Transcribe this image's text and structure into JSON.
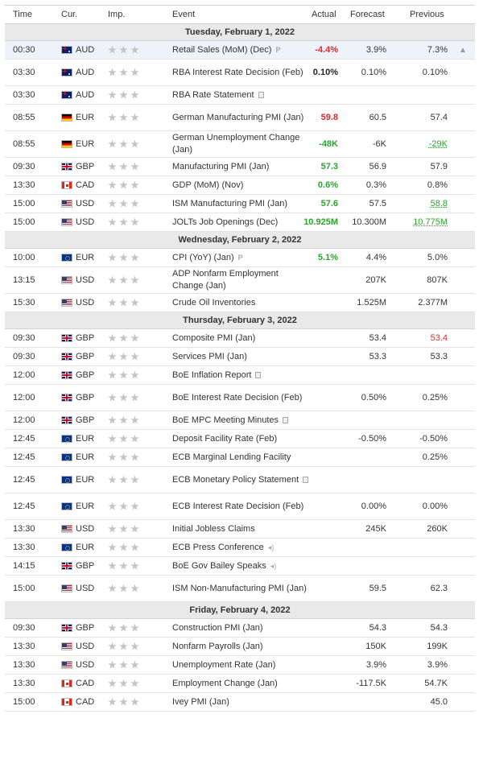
{
  "headers": {
    "time": "Time",
    "cur": "Cur.",
    "imp": "Imp.",
    "event": "Event",
    "actual": "Actual",
    "forecast": "Forecast",
    "previous": "Previous"
  },
  "sections": [
    {
      "date": "Tuesday, February 1, 2022",
      "rows": [
        {
          "time": "00:30",
          "flag": "AUD",
          "cur": "AUD",
          "event": "Retail Sales (MoM) (Dec)",
          "icon": "prelim",
          "actual": "-4.4%",
          "aclass": "neg",
          "forecast": "3.9%",
          "previous": "7.3%",
          "pclass": "",
          "h": 1,
          "hl": true,
          "alert": true
        },
        {
          "time": "03:30",
          "flag": "AUD",
          "cur": "AUD",
          "event": "RBA Interest Rate Decision (Feb)",
          "icon": "",
          "actual": "0.10%",
          "aclass": "neu",
          "forecast": "0.10%",
          "previous": "0.10%",
          "pclass": "",
          "h": 2
        },
        {
          "time": "03:30",
          "flag": "AUD",
          "cur": "AUD",
          "event": "RBA Rate Statement",
          "icon": "doc",
          "actual": "",
          "aclass": "",
          "forecast": "",
          "previous": "",
          "pclass": "",
          "h": 1
        },
        {
          "time": "08:55",
          "flag": "GER",
          "cur": "EUR",
          "event": "German Manufacturing PMI (Jan)",
          "icon": "",
          "actual": "59.8",
          "aclass": "neg",
          "forecast": "60.5",
          "previous": "57.4",
          "pclass": "",
          "h": 2
        },
        {
          "time": "08:55",
          "flag": "GER",
          "cur": "EUR",
          "event": "German Unemployment Change (Jan)",
          "icon": "",
          "actual": "-48K",
          "aclass": "pos",
          "forecast": "-6K",
          "previous": "-29K",
          "pclass": "prev-pos",
          "h": 2
        },
        {
          "time": "09:30",
          "flag": "GBP",
          "cur": "GBP",
          "event": "Manufacturing PMI (Jan)",
          "icon": "",
          "actual": "57.3",
          "aclass": "pos",
          "forecast": "56.9",
          "previous": "57.9",
          "pclass": "",
          "h": 1
        },
        {
          "time": "13:30",
          "flag": "CAD",
          "cur": "CAD",
          "event": "GDP (MoM) (Nov)",
          "icon": "",
          "actual": "0.6%",
          "aclass": "pos",
          "forecast": "0.3%",
          "previous": "0.8%",
          "pclass": "",
          "h": 1
        },
        {
          "time": "15:00",
          "flag": "USD",
          "cur": "USD",
          "event": "ISM Manufacturing PMI (Jan)",
          "icon": "",
          "actual": "57.6",
          "aclass": "pos",
          "forecast": "57.5",
          "previous": "58.8",
          "pclass": "prev-pos",
          "h": 1
        },
        {
          "time": "15:00",
          "flag": "USD",
          "cur": "USD",
          "event": "JOLTs Job Openings (Dec)",
          "icon": "",
          "actual": "10.925M",
          "aclass": "pos",
          "forecast": "10.300M",
          "previous": "10.775M",
          "pclass": "prev-pos",
          "h": 1
        }
      ]
    },
    {
      "date": "Wednesday, February 2, 2022",
      "rows": [
        {
          "time": "10:00",
          "flag": "EUR",
          "cur": "EUR",
          "event": "CPI (YoY) (Jan)",
          "icon": "prelim",
          "actual": "5.1%",
          "aclass": "pos",
          "forecast": "4.4%",
          "previous": "5.0%",
          "pclass": "",
          "h": 1
        },
        {
          "time": "13:15",
          "flag": "USD",
          "cur": "USD",
          "event": "ADP Nonfarm Employment Change (Jan)",
          "icon": "",
          "actual": "",
          "aclass": "",
          "forecast": "207K",
          "previous": "807K",
          "pclass": "",
          "h": 2
        },
        {
          "time": "15:30",
          "flag": "USD",
          "cur": "USD",
          "event": "Crude Oil Inventories",
          "icon": "",
          "actual": "",
          "aclass": "",
          "forecast": "1.525M",
          "previous": "2.377M",
          "pclass": "",
          "h": 1
        }
      ]
    },
    {
      "date": "Thursday, February 3, 2022",
      "rows": [
        {
          "time": "09:30",
          "flag": "GBP",
          "cur": "GBP",
          "event": "Composite PMI (Jan)",
          "icon": "",
          "actual": "",
          "aclass": "",
          "forecast": "53.4",
          "previous": "53.4",
          "pclass": "prev-neg",
          "h": 1
        },
        {
          "time": "09:30",
          "flag": "GBP",
          "cur": "GBP",
          "event": "Services PMI (Jan)",
          "icon": "",
          "actual": "",
          "aclass": "",
          "forecast": "53.3",
          "previous": "53.3",
          "pclass": "",
          "h": 1
        },
        {
          "time": "12:00",
          "flag": "GBP",
          "cur": "GBP",
          "event": "BoE Inflation Report",
          "icon": "doc",
          "actual": "",
          "aclass": "",
          "forecast": "",
          "previous": "",
          "pclass": "",
          "h": 1
        },
        {
          "time": "12:00",
          "flag": "GBP",
          "cur": "GBP",
          "event": "BoE Interest Rate Decision (Feb)",
          "icon": "",
          "actual": "",
          "aclass": "",
          "forecast": "0.50%",
          "previous": "0.25%",
          "pclass": "",
          "h": 2
        },
        {
          "time": "12:00",
          "flag": "GBP",
          "cur": "GBP",
          "event": "BoE MPC Meeting Minutes",
          "icon": "doc",
          "actual": "",
          "aclass": "",
          "forecast": "",
          "previous": "",
          "pclass": "",
          "h": 1
        },
        {
          "time": "12:45",
          "flag": "EUR",
          "cur": "EUR",
          "event": "Deposit Facility Rate (Feb)",
          "icon": "",
          "actual": "",
          "aclass": "",
          "forecast": "-0.50%",
          "previous": "-0.50%",
          "pclass": "",
          "h": 1
        },
        {
          "time": "12:45",
          "flag": "EUR",
          "cur": "EUR",
          "event": "ECB Marginal Lending Facility",
          "icon": "",
          "actual": "",
          "aclass": "",
          "forecast": "",
          "previous": "0.25%",
          "pclass": "",
          "h": 1
        },
        {
          "time": "12:45",
          "flag": "EUR",
          "cur": "EUR",
          "event": "ECB Monetary Policy Statement",
          "icon": "doc",
          "actual": "",
          "aclass": "",
          "forecast": "",
          "previous": "",
          "pclass": "",
          "h": 2
        },
        {
          "time": "12:45",
          "flag": "EUR",
          "cur": "EUR",
          "event": "ECB Interest Rate Decision (Feb)",
          "icon": "",
          "actual": "",
          "aclass": "",
          "forecast": "0.00%",
          "previous": "0.00%",
          "pclass": "",
          "h": 2
        },
        {
          "time": "13:30",
          "flag": "USD",
          "cur": "USD",
          "event": "Initial Jobless Claims",
          "icon": "",
          "actual": "",
          "aclass": "",
          "forecast": "245K",
          "previous": "260K",
          "pclass": "",
          "h": 1
        },
        {
          "time": "13:30",
          "flag": "EUR",
          "cur": "EUR",
          "event": "ECB Press Conference",
          "icon": "speak",
          "actual": "",
          "aclass": "",
          "forecast": "",
          "previous": "",
          "pclass": "",
          "h": 1
        },
        {
          "time": "14:15",
          "flag": "GBP",
          "cur": "GBP",
          "event": "BoE Gov Bailey Speaks",
          "icon": "speak",
          "actual": "",
          "aclass": "",
          "forecast": "",
          "previous": "",
          "pclass": "",
          "h": 1
        },
        {
          "time": "15:00",
          "flag": "USD",
          "cur": "USD",
          "event": "ISM Non-Manufacturing PMI (Jan)",
          "icon": "",
          "actual": "",
          "aclass": "",
          "forecast": "59.5",
          "previous": "62.3",
          "pclass": "",
          "h": 2
        }
      ]
    },
    {
      "date": "Friday, February 4, 2022",
      "rows": [
        {
          "time": "09:30",
          "flag": "GBP",
          "cur": "GBP",
          "event": "Construction PMI (Jan)",
          "icon": "",
          "actual": "",
          "aclass": "",
          "forecast": "54.3",
          "previous": "54.3",
          "pclass": "",
          "h": 1
        },
        {
          "time": "13:30",
          "flag": "USD",
          "cur": "USD",
          "event": "Nonfarm Payrolls (Jan)",
          "icon": "",
          "actual": "",
          "aclass": "",
          "forecast": "150K",
          "previous": "199K",
          "pclass": "",
          "h": 1
        },
        {
          "time": "13:30",
          "flag": "USD",
          "cur": "USD",
          "event": "Unemployment Rate (Jan)",
          "icon": "",
          "actual": "",
          "aclass": "",
          "forecast": "3.9%",
          "previous": "3.9%",
          "pclass": "",
          "h": 1
        },
        {
          "time": "13:30",
          "flag": "CAD",
          "cur": "CAD",
          "event": "Employment Change (Jan)",
          "icon": "",
          "actual": "",
          "aclass": "",
          "forecast": "-117.5K",
          "previous": "54.7K",
          "pclass": "",
          "h": 1
        },
        {
          "time": "15:00",
          "flag": "CAD",
          "cur": "CAD",
          "event": "Ivey PMI (Jan)",
          "icon": "",
          "actual": "",
          "aclass": "",
          "forecast": "",
          "previous": "45.0",
          "pclass": "",
          "h": 1
        }
      ]
    }
  ],
  "icons": {
    "prelim": "prelim-icon",
    "doc": "document-icon",
    "speak": "speaker-icon",
    "alert": "bell-plus-icon",
    "star": "star-icon"
  }
}
